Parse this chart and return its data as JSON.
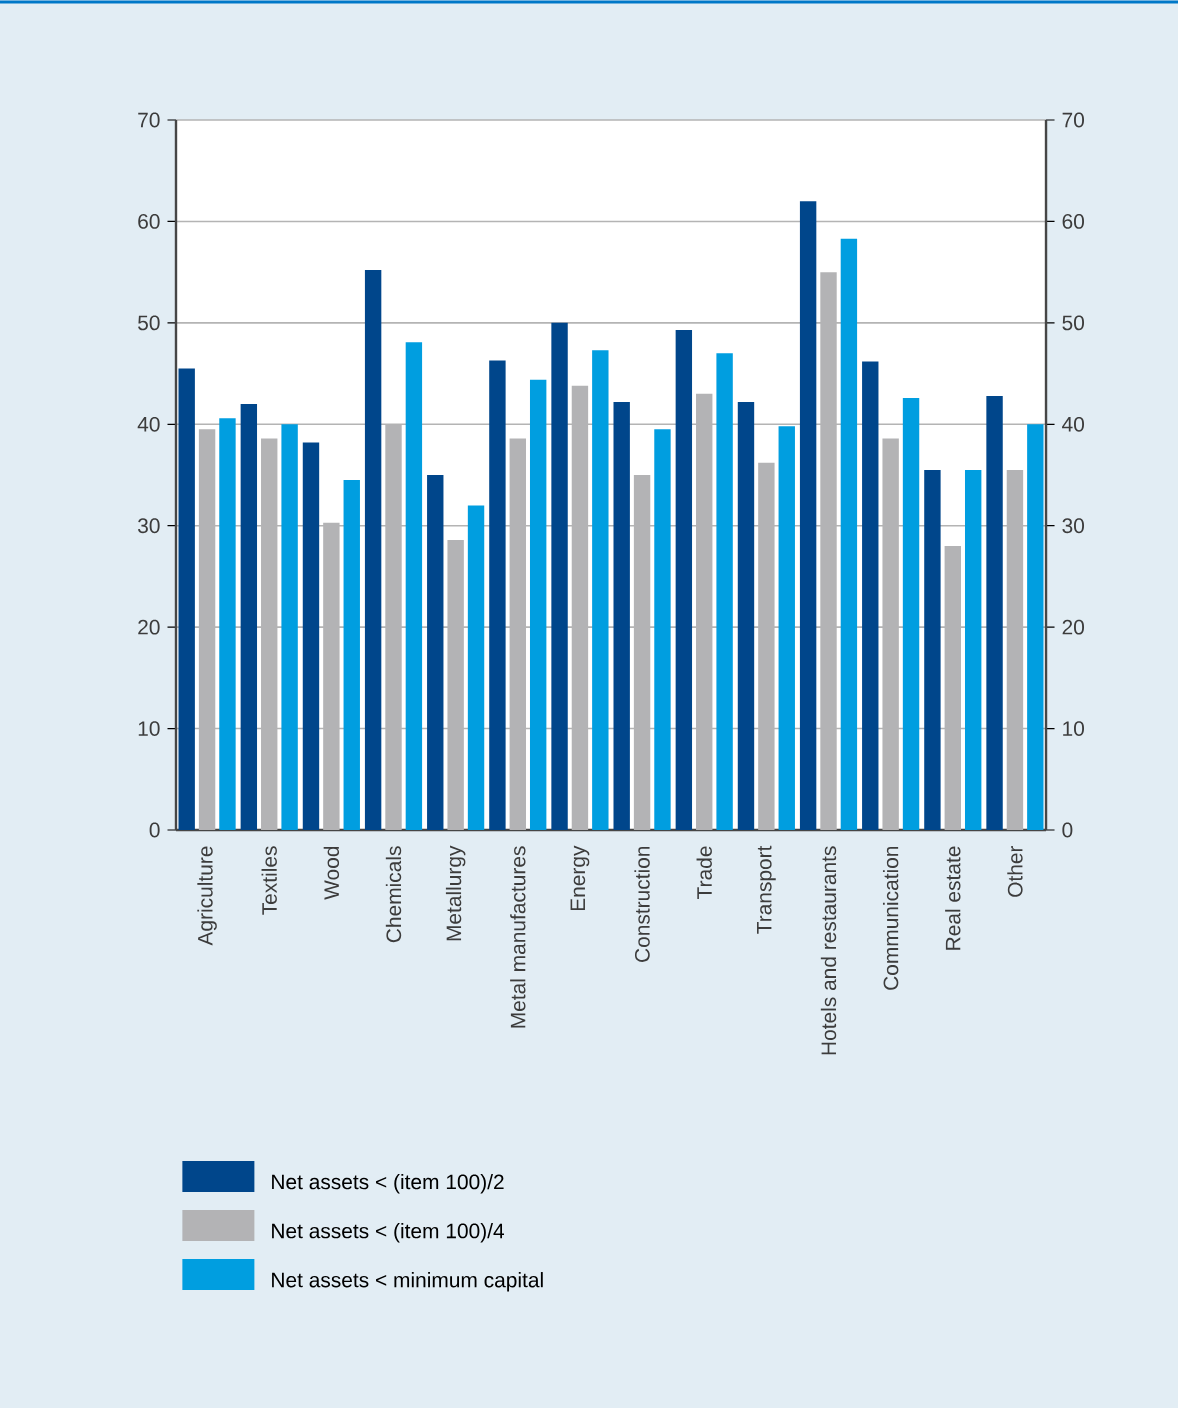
{
  "chart_data": {
    "type": "bar",
    "categories": [
      "Agriculture",
      "Textiles",
      "Wood",
      "Chemicals",
      "Metallurgy",
      "Metal manufactures",
      "Energy",
      "Construction",
      "Trade",
      "Transport",
      "Hotels and restaurants",
      "Communication",
      "Real estate",
      "Other"
    ],
    "series": [
      {
        "name": "Net assets < (item 100)/2",
        "color": "#00468b",
        "values": [
          45.5,
          42,
          38.2,
          55.2,
          35,
          46.3,
          50,
          42.2,
          49.3,
          42.2,
          62,
          46.2,
          35.5,
          42.8
        ]
      },
      {
        "name": "Net assets < (item 100)/4",
        "color": "#b3b3b5",
        "values": [
          39.5,
          38.6,
          30.3,
          40,
          28.6,
          38.6,
          43.8,
          35,
          43,
          36.2,
          55,
          38.6,
          28,
          35.5
        ]
      },
      {
        "name": "Net assets < minimum capital",
        "color": "#009ee0",
        "values": [
          40.6,
          40,
          34.5,
          48.1,
          32,
          44.4,
          47.3,
          39.5,
          47,
          39.8,
          58.3,
          42.6,
          35.5,
          40
        ]
      }
    ],
    "ylim": [
      0,
      70
    ],
    "yticks": [
      0,
      10,
      20,
      30,
      40,
      50,
      60,
      70
    ],
    "y2lim": [
      0,
      70
    ],
    "y2ticks": [
      0,
      10,
      20,
      30,
      40,
      50,
      60,
      70
    ],
    "grid": "y",
    "legend": "bottom"
  }
}
